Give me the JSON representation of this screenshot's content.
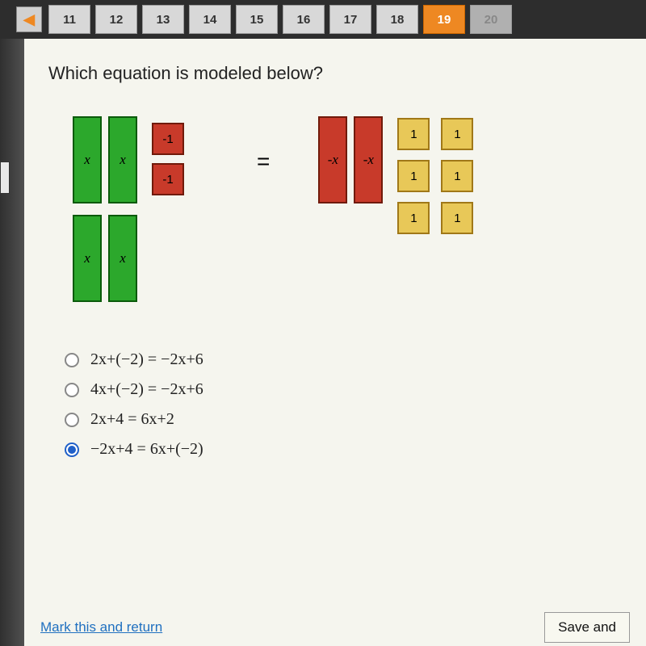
{
  "nav": {
    "arrow": "◀",
    "items": [
      "11",
      "12",
      "13",
      "14",
      "15",
      "16",
      "17",
      "18",
      "19",
      "20"
    ],
    "active_index": 8,
    "disabled_index": 9
  },
  "question": "Which equation is modeled below?",
  "tiles": {
    "x_label": "x",
    "neg_x_label": "-x",
    "neg_unit_label": "-1",
    "pos_unit_label": "1",
    "equals": "=",
    "x_color": "#2ca82c",
    "neg_x_color": "#c83a2a",
    "neg_unit_color": "#c83a2a",
    "pos_unit_color": "#e8c858"
  },
  "options": [
    {
      "text": "2x+(−2) = −2x+6",
      "selected": false
    },
    {
      "text": "4x+(−2) = −2x+6",
      "selected": false
    },
    {
      "text": "2x+4 = 6x+2",
      "selected": false
    },
    {
      "text": "−2x+4 = 6x+(−2)",
      "selected": true
    }
  ],
  "footer": {
    "mark_link": "Mark this and return",
    "save_button": "Save and"
  }
}
